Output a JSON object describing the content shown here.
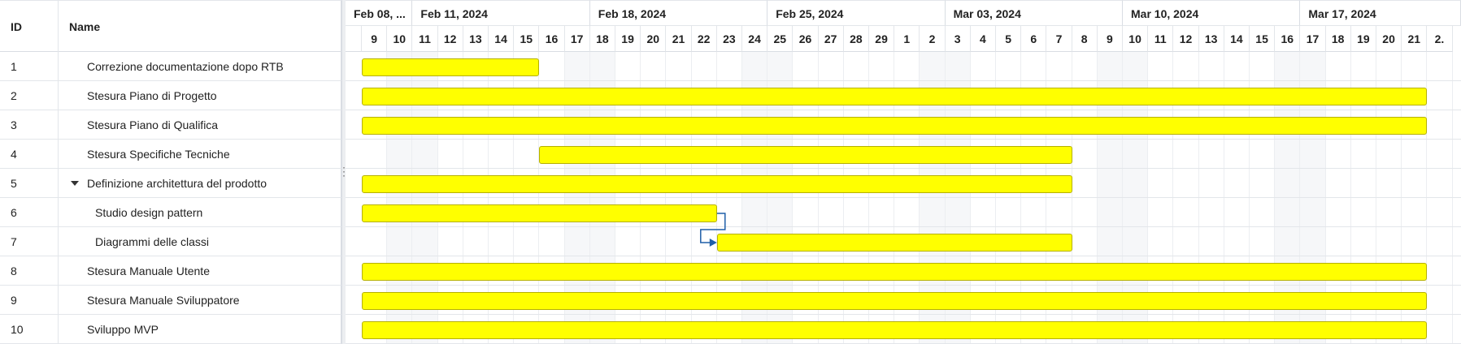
{
  "grid": {
    "headers": {
      "id": "ID",
      "name": "Name"
    },
    "rows": [
      {
        "id": "1",
        "name": "Correzione documentazione dopo RTB",
        "level": 1,
        "expander": false
      },
      {
        "id": "2",
        "name": "Stesura Piano di Progetto",
        "level": 1,
        "expander": false
      },
      {
        "id": "3",
        "name": "Stesura Piano di Qualifica",
        "level": 1,
        "expander": false
      },
      {
        "id": "4",
        "name": "Stesura Specifiche Tecniche",
        "level": 1,
        "expander": false
      },
      {
        "id": "5",
        "name": "Definizione architettura del prodotto",
        "level": 1,
        "expander": true
      },
      {
        "id": "6",
        "name": "Studio design pattern",
        "level": 2,
        "expander": false
      },
      {
        "id": "7",
        "name": "Diagrammi delle classi",
        "level": 2,
        "expander": false
      },
      {
        "id": "8",
        "name": "Stesura Manuale Utente",
        "level": 1,
        "expander": false
      },
      {
        "id": "9",
        "name": "Stesura Manuale Sviluppatore",
        "level": 1,
        "expander": false
      },
      {
        "id": "10",
        "name": "Sviluppo MVP",
        "level": 1,
        "expander": false
      }
    ]
  },
  "timeline": {
    "months": [
      "Feb 08, ...",
      "Feb 11, 2024",
      "Feb 18, 2024",
      "Feb 25, 2024",
      "Mar 03, 2024",
      "Mar 10, 2024",
      "Mar 17, 2024"
    ],
    "days": [
      "9",
      "10",
      "11",
      "12",
      "13",
      "14",
      "15",
      "16",
      "17",
      "18",
      "19",
      "20",
      "21",
      "22",
      "23",
      "24",
      "25",
      "26",
      "27",
      "28",
      "29",
      "1",
      "2",
      "3",
      "4",
      "5",
      "6",
      "7",
      "8",
      "9",
      "10",
      "11",
      "12",
      "13",
      "14",
      "15",
      "16",
      "17",
      "18",
      "19",
      "20",
      "21",
      "2."
    ],
    "week_start_indices": [
      0,
      2,
      9,
      16,
      23,
      30,
      37
    ],
    "weekend_indices": [
      1,
      2,
      8,
      9,
      15,
      16,
      22,
      23,
      29,
      30,
      36,
      37
    ],
    "bar_color": "#ffff00",
    "link_color": "#1f5fa8"
  },
  "tasks": [
    {
      "id": "1",
      "start_day_index": 0,
      "end_day_index": 7
    },
    {
      "id": "2",
      "start_day_index": 0,
      "end_day_index": 42
    },
    {
      "id": "3",
      "start_day_index": 0,
      "end_day_index": 42
    },
    {
      "id": "4",
      "start_day_index": 7,
      "end_day_index": 28
    },
    {
      "id": "5",
      "start_day_index": 0,
      "end_day_index": 28
    },
    {
      "id": "6",
      "start_day_index": 0,
      "end_day_index": 14
    },
    {
      "id": "7",
      "start_day_index": 14,
      "end_day_index": 28
    },
    {
      "id": "8",
      "start_day_index": 0,
      "end_day_index": 42
    },
    {
      "id": "9",
      "start_day_index": 0,
      "end_day_index": 42
    },
    {
      "id": "10",
      "start_day_index": 0,
      "end_day_index": 42
    }
  ],
  "links": [
    {
      "from": "6",
      "to": "7"
    }
  ]
}
